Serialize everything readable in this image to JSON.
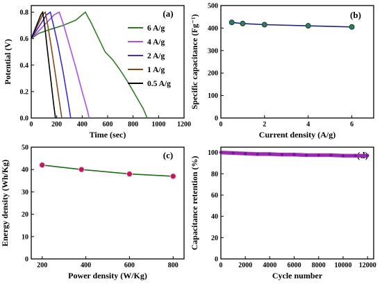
{
  "figure": {
    "panels": [
      {
        "id": "a",
        "label": "(a)",
        "xlabel": "Time (sec)",
        "ylabel": "Potential (V)"
      },
      {
        "id": "b",
        "label": "(b)",
        "xlabel": "Current density (A/g)",
        "ylabel": "Specific capacitance (Fg⁻¹)"
      },
      {
        "id": "c",
        "label": "(c)",
        "xlabel": "Power density (W/Kg)",
        "ylabel": "Energy density (Wh/Kg)"
      },
      {
        "id": "d",
        "label": "(d)",
        "xlabel": "Cycle number",
        "ylabel": "Capacitance retention (%)"
      }
    ]
  },
  "chart_data": [
    {
      "panel": "a",
      "type": "line",
      "title": "",
      "xlabel": "Time (sec)",
      "ylabel": "Potential (V)",
      "xlim": [
        0,
        1200
      ],
      "ylim": [
        0,
        0.85
      ],
      "xticks": [
        "0",
        "200",
        "400",
        "600",
        "800",
        "1000",
        "1200"
      ],
      "yticks": [
        "0.0",
        "0.2",
        "0.4",
        "0.6",
        "0.8"
      ],
      "legend_position": "right",
      "series": [
        {
          "name": "6 A/g",
          "color": "#2e7d1f",
          "x": [
            0,
            60,
            150,
            250,
            350,
            425,
            470,
            520,
            580,
            640,
            700,
            760,
            820,
            880,
            910
          ],
          "y": [
            0.6,
            0.64,
            0.67,
            0.7,
            0.74,
            0.8,
            0.72,
            0.62,
            0.5,
            0.44,
            0.36,
            0.27,
            0.17,
            0.07,
            0.0
          ]
        },
        {
          "name": "4 A/g",
          "color": "#b04ee6",
          "x": [
            0,
            60,
            120,
            180,
            220,
            255,
            300,
            350,
            400,
            440,
            455
          ],
          "y": [
            0.6,
            0.66,
            0.72,
            0.78,
            0.8,
            0.7,
            0.55,
            0.38,
            0.2,
            0.06,
            0.0
          ]
        },
        {
          "name": "2 A/g",
          "color": "#3b28e0",
          "x": [
            0,
            40,
            80,
            120,
            150,
            175,
            210,
            250,
            290,
            310
          ],
          "y": [
            0.6,
            0.66,
            0.72,
            0.78,
            0.8,
            0.7,
            0.55,
            0.35,
            0.12,
            0.0
          ]
        },
        {
          "name": "1 A/g",
          "color": "#8b4513",
          "x": [
            0,
            30,
            60,
            90,
            110,
            130,
            160,
            190,
            220,
            240
          ],
          "y": [
            0.6,
            0.66,
            0.72,
            0.78,
            0.8,
            0.7,
            0.52,
            0.33,
            0.13,
            0.0
          ]
        },
        {
          "name": "0.5 A/g",
          "color": "#000000",
          "x": [
            0,
            25,
            50,
            75,
            90,
            105,
            125,
            150,
            175,
            190
          ],
          "y": [
            0.6,
            0.66,
            0.72,
            0.78,
            0.8,
            0.7,
            0.53,
            0.32,
            0.11,
            0.0
          ]
        }
      ]
    },
    {
      "panel": "b",
      "type": "line",
      "title": "",
      "xlabel": "Current density (A/g)",
      "ylabel": "Specific capacitance (Fg⁻¹)",
      "xlim": [
        0,
        7
      ],
      "ylim": [
        0,
        500
      ],
      "xticks": [
        "0",
        "2",
        "4",
        "6"
      ],
      "yticks": [
        "0",
        "100",
        "200",
        "300",
        "400",
        "500"
      ],
      "line_color": "#1a237e",
      "marker_color": "#2e7d5b",
      "series": [
        {
          "x": [
            0.5,
            1,
            2,
            4,
            6
          ],
          "y": [
            425,
            420,
            415,
            410,
            405
          ]
        }
      ]
    },
    {
      "panel": "c",
      "type": "line",
      "title": "",
      "xlabel": "Power density (W/Kg)",
      "ylabel": "Energy density (Wh/Kg)",
      "xlim": [
        150,
        850
      ],
      "ylim": [
        0,
        50
      ],
      "xticks": [
        "200",
        "400",
        "600",
        "800"
      ],
      "yticks": [
        "0",
        "10",
        "20",
        "30",
        "40",
        "50"
      ],
      "line_color": "#1b6e12",
      "marker_color": "#c2185b",
      "series": [
        {
          "x": [
            200,
            380,
            600,
            800
          ],
          "y": [
            42,
            40,
            38,
            37
          ]
        }
      ]
    },
    {
      "panel": "d",
      "type": "scatter",
      "title": "",
      "xlabel": "Cycle number",
      "ylabel": "Capacitance retention (%)",
      "xlim": [
        0,
        12500
      ],
      "ylim": [
        0,
        105
      ],
      "xticks": [
        "0",
        "2000",
        "4000",
        "6000",
        "8000",
        "10000",
        "12000"
      ],
      "yticks": [
        "0",
        "20",
        "40",
        "60",
        "80",
        "100"
      ],
      "marker_color": "#9c27b0",
      "series": [
        {
          "x": [
            0,
            1000,
            2000,
            3000,
            4000,
            5000,
            6000,
            7000,
            8000,
            9000,
            10000,
            11000,
            12000
          ],
          "y": [
            100,
            99.5,
            99,
            98.5,
            98.5,
            98,
            98,
            97.5,
            97.5,
            97.5,
            97,
            97,
            97
          ]
        }
      ]
    }
  ]
}
